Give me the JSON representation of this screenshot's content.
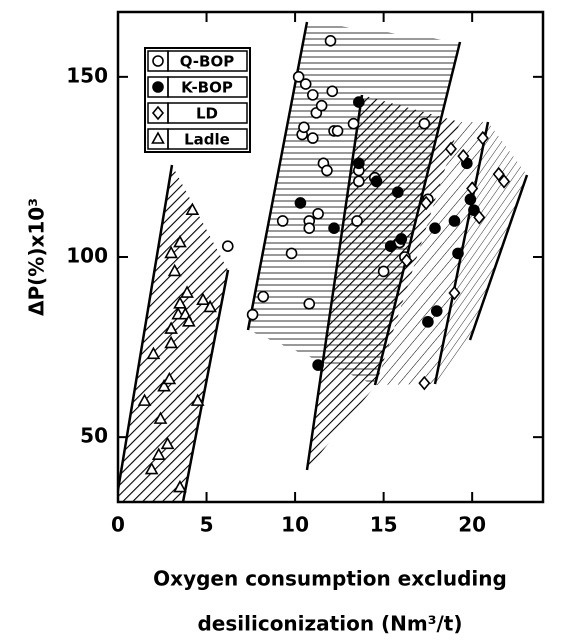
{
  "chart_data": {
    "type": "scatter",
    "xlabel": [
      "Oxygen consumption excluding",
      "desiliconization  (Nm³/t)"
    ],
    "ylabel": "ΔP(%)x10³",
    "xlim": [
      0,
      24
    ],
    "ylim": [
      32,
      168
    ],
    "xticks": [
      0,
      5,
      10,
      15,
      20
    ],
    "yticks": [
      50,
      100,
      150
    ],
    "series": [
      {
        "name": "Q-BOP",
        "marker": "circle-open",
        "color": "#000000",
        "x": [
          6.2,
          7.6,
          8.2,
          9.3,
          9.8,
          10.2,
          10.4,
          10.5,
          10.6,
          10.8,
          10.8,
          11.0,
          11.0,
          11.2,
          11.3,
          11.5,
          11.6,
          11.8,
          12.0,
          12.1,
          12.2,
          12.4,
          10.8,
          13.3,
          13.5,
          13.6,
          13.6,
          14.5,
          15.0,
          15.4,
          15.9,
          16.2,
          17.3,
          17.5
        ],
        "values": [
          103,
          84,
          89,
          110,
          101,
          150,
          134,
          136,
          148,
          110,
          108,
          145,
          133,
          140,
          112,
          142,
          126,
          124,
          160,
          146,
          135,
          135,
          87,
          137,
          110,
          121,
          124,
          122,
          96,
          103,
          104,
          100,
          137,
          116
        ]
      },
      {
        "name": "K-BOP",
        "marker": "circle-filled",
        "color": "#000000",
        "x": [
          10.3,
          11.3,
          12.2,
          13.6,
          13.6,
          14.6,
          15.4,
          15.8,
          16.0,
          17.5,
          17.9,
          18.0,
          19.0,
          19.2,
          19.7,
          19.9,
          20.1
        ],
        "values": [
          115,
          70,
          108,
          143,
          126,
          121,
          103,
          118,
          105,
          82,
          108,
          85,
          110,
          101,
          126,
          116,
          113
        ]
      },
      {
        "name": "LD",
        "marker": "diamond",
        "color": "#000000",
        "x": [
          17.3,
          17.4,
          18.8,
          19.0,
          19.5,
          20.0,
          20.4,
          20.6,
          21.5,
          21.8,
          16.3
        ],
        "values": [
          65,
          115,
          130,
          90,
          128,
          119,
          111,
          133,
          123,
          121,
          99
        ]
      },
      {
        "name": "Ladle",
        "marker": "triangle",
        "color": "#000000",
        "x": [
          1.5,
          1.9,
          2.3,
          2.4,
          2.6,
          2.9,
          3.0,
          3.4,
          3.0,
          3.5,
          3.2,
          3.5,
          3.8,
          4.0,
          4.2,
          3.9,
          4.5,
          4.8,
          5.2,
          3.0,
          2.8,
          3.5,
          2.0
        ],
        "values": [
          60,
          41,
          45,
          55,
          64,
          66,
          76,
          84,
          101,
          104,
          96,
          87,
          84,
          82,
          113,
          90,
          60,
          88,
          86,
          80,
          48,
          36,
          73
        ]
      }
    ]
  }
}
